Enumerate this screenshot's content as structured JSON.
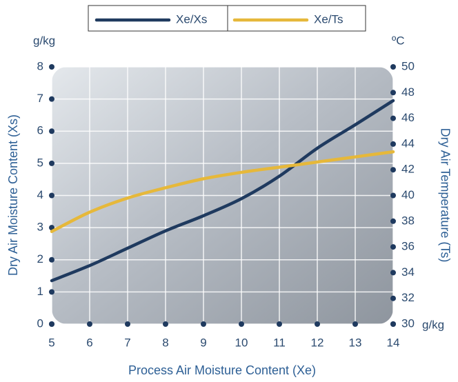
{
  "chart_data": {
    "type": "line",
    "x_label": "Process Air Moisture Content (Xe)",
    "y_label": "Dry Air Moisture Content (Xs)",
    "y2_label": "Dry Air Temperature (Ts)",
    "x_unit": "g/kg",
    "y_unit": "g/kg",
    "y2_unit": "ºC",
    "x": [
      5,
      6,
      7,
      8,
      9,
      10,
      11,
      12,
      13,
      14
    ],
    "series": [
      {
        "name": "Xe/Xs",
        "color": "#1f3a5f",
        "values": [
          1.35,
          1.82,
          2.36,
          2.9,
          3.37,
          3.9,
          4.6,
          5.47,
          6.2,
          6.95
        ]
      },
      {
        "name": "Xe/Ts",
        "color": "#e6b83a",
        "axis": "y2",
        "values": [
          37.2,
          38.7,
          39.8,
          40.6,
          41.3,
          41.8,
          42.2,
          42.6,
          43.0,
          43.4
        ]
      }
    ],
    "xlim": [
      5,
      14
    ],
    "xticks": [
      5,
      6,
      7,
      8,
      9,
      10,
      11,
      12,
      13,
      14
    ],
    "ylim": [
      0,
      8
    ],
    "yticks": [
      0,
      1,
      2,
      3,
      4,
      5,
      6,
      7,
      8
    ],
    "y2lim": [
      30,
      50
    ],
    "y2ticks": [
      30,
      32,
      34,
      36,
      38,
      40,
      42,
      44,
      46,
      48,
      50
    ],
    "grid": true,
    "legend": "top"
  }
}
